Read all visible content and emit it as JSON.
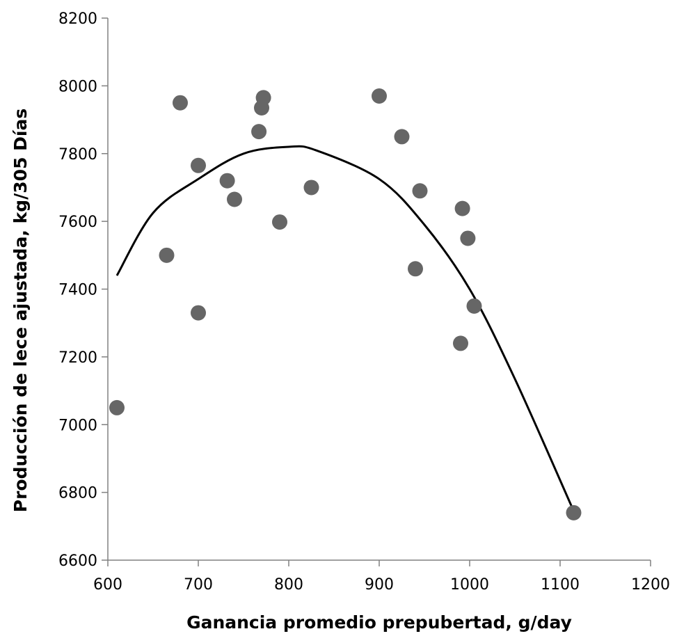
{
  "chart_data": {
    "type": "scatter",
    "xlabel": "Ganancia promedio prepubertad, g/day",
    "ylabel": "Producción de lece ajustada, kg/305 Días",
    "xlim": [
      600,
      1200
    ],
    "ylim": [
      6600,
      8200
    ],
    "x_ticks": [
      "600",
      "700",
      "800",
      "900",
      "1000",
      "1100",
      "1200"
    ],
    "y_ticks": [
      "6600",
      "6800",
      "7000",
      "7200",
      "7400",
      "7600",
      "7800",
      "8000",
      "8200"
    ],
    "grid": false,
    "legend": "none",
    "point_color": "#666666",
    "line_color": "#000000",
    "points": [
      {
        "x": 610,
        "y": 7050
      },
      {
        "x": 665,
        "y": 7500
      },
      {
        "x": 680,
        "y": 7950
      },
      {
        "x": 700,
        "y": 7765
      },
      {
        "x": 700,
        "y": 7330
      },
      {
        "x": 732,
        "y": 7720
      },
      {
        "x": 740,
        "y": 7665
      },
      {
        "x": 767,
        "y": 7865
      },
      {
        "x": 770,
        "y": 7935
      },
      {
        "x": 772,
        "y": 7965
      },
      {
        "x": 790,
        "y": 7598
      },
      {
        "x": 825,
        "y": 7700
      },
      {
        "x": 900,
        "y": 7970
      },
      {
        "x": 925,
        "y": 7850
      },
      {
        "x": 940,
        "y": 7460
      },
      {
        "x": 945,
        "y": 7690
      },
      {
        "x": 990,
        "y": 7240
      },
      {
        "x": 992,
        "y": 7638
      },
      {
        "x": 998,
        "y": 7550
      },
      {
        "x": 1005,
        "y": 7350
      },
      {
        "x": 1115,
        "y": 6740
      }
    ],
    "trendline": {
      "type": "quadratic",
      "x": [
        610,
        650,
        700,
        750,
        800,
        830,
        900,
        950,
        1000,
        1050,
        1115
      ],
      "y": [
        7440,
        7625,
        7725,
        7800,
        7820,
        7810,
        7725,
        7590,
        7400,
        7135,
        6745
      ]
    }
  }
}
